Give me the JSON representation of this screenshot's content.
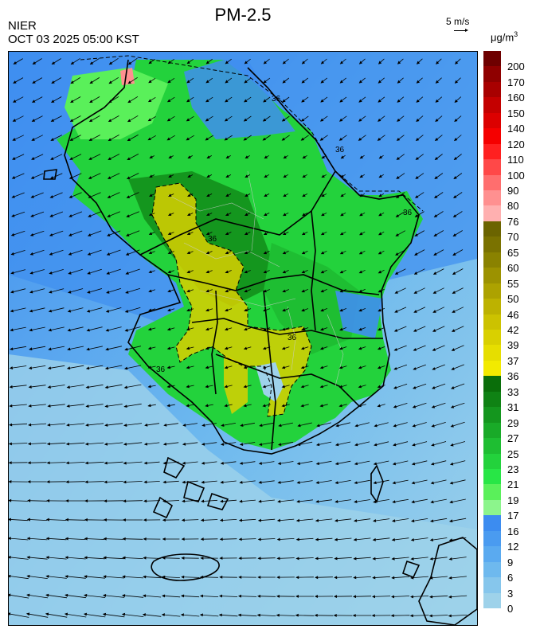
{
  "header": {
    "agency": "NIER",
    "datetime": "OCT 03 2025 05:00 KST",
    "title": "PM-2.5"
  },
  "wind_scale": {
    "label": "5 m/s"
  },
  "unit": {
    "base": "μg/m",
    "exp": "3"
  },
  "contour_label": "36",
  "legend": [
    {
      "label": "200",
      "color": "#6e0000"
    },
    {
      "label": "170",
      "color": "#8f0000"
    },
    {
      "label": "160",
      "color": "#a80000"
    },
    {
      "label": "150",
      "color": "#c40000"
    },
    {
      "label": "140",
      "color": "#dc0000"
    },
    {
      "label": "120",
      "color": "#f50000"
    },
    {
      "label": "110",
      "color": "#ff2020"
    },
    {
      "label": "100",
      "color": "#ff4848"
    },
    {
      "label": "90",
      "color": "#ff6e6e"
    },
    {
      "label": "80",
      "color": "#ff9090"
    },
    {
      "label": "76",
      "color": "#ffb0b0"
    },
    {
      "label": "70",
      "color": "#6b6400"
    },
    {
      "label": "65",
      "color": "#7a7200"
    },
    {
      "label": "60",
      "color": "#8a8200"
    },
    {
      "label": "55",
      "color": "#9c9200"
    },
    {
      "label": "50",
      "color": "#ada200"
    },
    {
      "label": "46",
      "color": "#bdb200"
    },
    {
      "label": "42",
      "color": "#ccc200"
    },
    {
      "label": "39",
      "color": "#d9d000"
    },
    {
      "label": "37",
      "color": "#e6de00"
    },
    {
      "label": "36",
      "color": "#f2ea00"
    },
    {
      "label": "33",
      "color": "#0a6e0a"
    },
    {
      "label": "31",
      "color": "#0f8214"
    },
    {
      "label": "29",
      "color": "#14961e"
    },
    {
      "label": "27",
      "color": "#19aa28"
    },
    {
      "label": "25",
      "color": "#1ebe32"
    },
    {
      "label": "23",
      "color": "#23d23c"
    },
    {
      "label": "21",
      "color": "#28e646"
    },
    {
      "label": "19",
      "color": "#5af05a"
    },
    {
      "label": "17",
      "color": "#8cf58c"
    },
    {
      "label": "16",
      "color": "#3c8cf0"
    },
    {
      "label": "12",
      "color": "#4a9bf0"
    },
    {
      "label": "9",
      "color": "#5aaaf0"
    },
    {
      "label": "6",
      "color": "#6eb9ee"
    },
    {
      "label": "3",
      "color": "#86c6ec"
    },
    {
      "label": "0",
      "color": "#9ed2ea"
    }
  ]
}
